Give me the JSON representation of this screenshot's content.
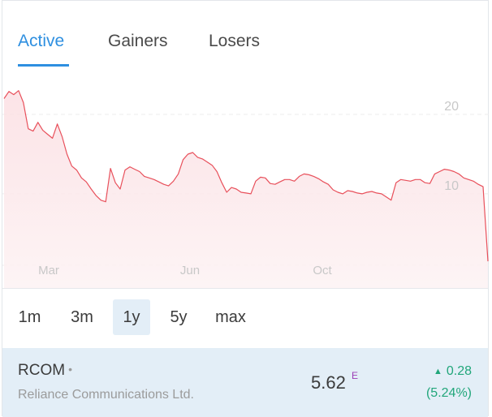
{
  "tabs": [
    {
      "label": "Active",
      "active": true
    },
    {
      "label": "Gainers",
      "active": false
    },
    {
      "label": "Losers",
      "active": false
    }
  ],
  "chart_data": {
    "type": "area",
    "x_tick_labels": [
      "Mar",
      "Jun",
      "Oct"
    ],
    "y_tick_labels": [
      "20",
      "10"
    ],
    "ylim": [
      1,
      24.5
    ],
    "grid": true,
    "line_color": "#e8505b",
    "fill_color": "#fde8ea",
    "x": [
      0,
      1,
      2,
      3,
      4,
      5,
      6,
      7,
      8,
      9,
      10,
      11,
      12,
      13,
      14,
      15,
      16,
      17,
      18,
      19,
      20,
      21,
      22,
      23,
      24,
      25,
      26,
      27,
      28,
      29,
      30,
      31,
      32,
      33,
      34,
      35,
      36,
      37,
      38,
      39,
      40,
      41,
      42,
      43,
      44,
      45,
      46,
      47,
      48,
      49,
      50,
      51,
      52,
      53,
      54,
      55,
      56,
      57,
      58,
      59,
      60,
      61,
      62,
      63,
      64,
      65,
      66,
      67,
      68,
      69,
      70,
      71,
      72,
      73,
      74,
      75,
      76,
      77,
      78,
      79,
      80,
      81,
      82,
      83,
      84,
      85,
      86,
      87,
      88,
      89,
      90,
      91,
      92,
      93,
      94,
      95,
      96,
      97,
      98,
      99,
      100
    ],
    "values": [
      22.0,
      22.9,
      22.5,
      23.0,
      21.5,
      18.2,
      17.9,
      19.0,
      18.0,
      17.5,
      17.0,
      18.8,
      17.2,
      15.0,
      13.5,
      13.0,
      12.0,
      11.5,
      10.6,
      9.8,
      9.2,
      9.0,
      13.2,
      11.4,
      10.6,
      13.0,
      13.4,
      13.1,
      12.8,
      12.2,
      12.0,
      11.8,
      11.5,
      11.2,
      11.0,
      11.6,
      12.5,
      14.3,
      15.0,
      15.2,
      14.6,
      14.4,
      14.0,
      13.6,
      12.8,
      11.4,
      10.2,
      10.8,
      10.6,
      10.2,
      10.1,
      10.0,
      11.6,
      12.1,
      12.0,
      11.3,
      11.2,
      11.5,
      11.8,
      11.8,
      11.6,
      12.2,
      12.5,
      12.4,
      12.2,
      11.9,
      11.5,
      11.2,
      10.5,
      10.2,
      10.0,
      10.4,
      10.3,
      10.1,
      10.0,
      10.2,
      10.3,
      10.1,
      10.0,
      9.6,
      9.2,
      11.4,
      11.8,
      11.7,
      11.6,
      11.8,
      11.8,
      11.4,
      11.3,
      12.5,
      12.8,
      13.1,
      13.0,
      12.8,
      12.5,
      12.0,
      11.8,
      11.6,
      11.2,
      10.9,
      1.5
    ]
  },
  "ranges": [
    {
      "label": "1m",
      "selected": false
    },
    {
      "label": "3m",
      "selected": false
    },
    {
      "label": "1y",
      "selected": true
    },
    {
      "label": "5y",
      "selected": false
    },
    {
      "label": "max",
      "selected": false
    }
  ],
  "stock": {
    "ticker": "RCOM",
    "dot": "•",
    "company": "Reliance Communications Ltd.",
    "price": "5.62",
    "price_flag": "E",
    "change_abs": "0.28",
    "change_pct": "(5.24%)",
    "change_direction": "up",
    "change_color": "#21a67a"
  }
}
